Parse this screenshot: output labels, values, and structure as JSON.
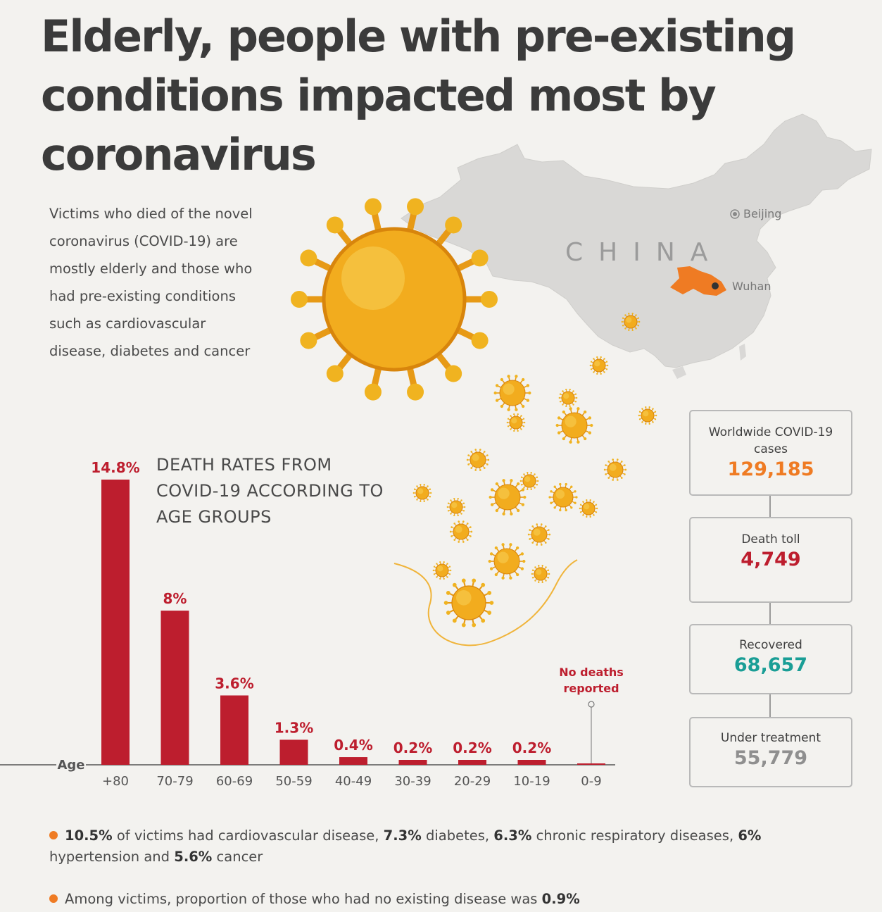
{
  "title": "Elderly, people with pre-existing conditions impacted most by coronavirus",
  "intro": "Victims who died of the novel coronavirus (COVID-19) are mostly elderly and those who had pre-existing conditions such as cardiovascular disease, diabetes and cancer",
  "map": {
    "country": "CHINA",
    "beijing": "Beijing",
    "wuhan": "Wuhan",
    "land_color": "#d9d8d6",
    "hubei_color": "#ef7b23"
  },
  "chart_heading": "DEATH RATES FROM COVID-19 ACCORDING TO AGE GROUPS",
  "chart_data": {
    "type": "bar",
    "title": "DEATH RATES FROM COVID-19 ACCORDING TO AGE GROUPS",
    "xlabel": "Age",
    "categories": [
      "+80",
      "70-79",
      "60-69",
      "50-59",
      "40-49",
      "30-39",
      "20-29",
      "10-19",
      "0-9"
    ],
    "values": [
      14.8,
      8,
      3.6,
      1.3,
      0.4,
      0.2,
      0.2,
      0.2,
      0
    ],
    "labels": [
      "14.8%",
      "8%",
      "3.6%",
      "1.3%",
      "0.4%",
      "0.2%",
      "0.2%",
      "0.2%",
      ""
    ],
    "no_data_note": "No deaths reported",
    "ylim": [
      0,
      14.8
    ],
    "bar_color": "#bd1e2e"
  },
  "stats": [
    {
      "label": "Worldwide COVID-19 cases",
      "value": "129,185",
      "color": "#ef7b23"
    },
    {
      "label": "Death toll",
      "value": "4,749",
      "color": "#bd1e2e"
    },
    {
      "label": "Recovered",
      "value": "68,657",
      "color": "#1a9e96"
    },
    {
      "label": "Under treatment",
      "value": "55,779",
      "color": "#8f8f8f"
    }
  ],
  "notes": [
    {
      "parts": [
        {
          "t": "10.5%",
          "b": true
        },
        {
          "t": " of victims had cardiovascular disease, ",
          "b": false
        },
        {
          "t": "7.3%",
          "b": true
        },
        {
          "t": " diabetes, ",
          "b": false
        },
        {
          "t": "6.3%",
          "b": true
        },
        {
          "t": " chronic respiratory diseases, ",
          "b": false
        },
        {
          "t": "6%",
          "b": true
        },
        {
          "t": " hypertension and ",
          "b": false
        },
        {
          "t": "5.6%",
          "b": true
        },
        {
          "t": " cancer",
          "b": false
        }
      ]
    },
    {
      "parts": [
        {
          "t": "Among victims, proportion of those who had no existing disease was ",
          "b": false
        },
        {
          "t": "0.9%",
          "b": true
        }
      ]
    }
  ]
}
